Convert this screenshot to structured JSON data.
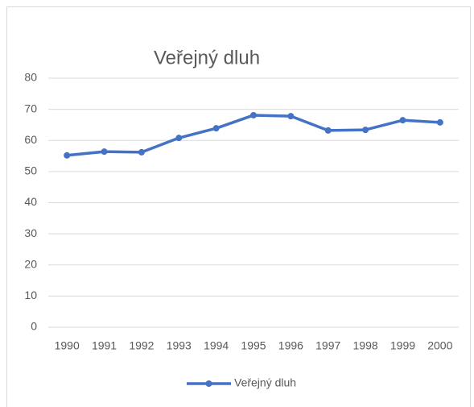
{
  "chart_data": {
    "type": "line",
    "title": "Veřejný dluh",
    "x": [
      "1990",
      "1991",
      "1992",
      "1993",
      "1994",
      "1995",
      "1996",
      "1997",
      "1998",
      "1999",
      "2000"
    ],
    "series": [
      {
        "name": "Veřejný dluh",
        "color": "#4472c4",
        "values": [
          55.2,
          56.4,
          56.2,
          60.8,
          63.9,
          68.1,
          67.8,
          63.2,
          63.4,
          66.5,
          65.8
        ]
      }
    ],
    "ylim": [
      0,
      80
    ],
    "yticks": [
      0,
      10,
      20,
      30,
      40,
      50,
      60,
      70,
      80
    ],
    "grid": true,
    "legend": "bottom"
  }
}
